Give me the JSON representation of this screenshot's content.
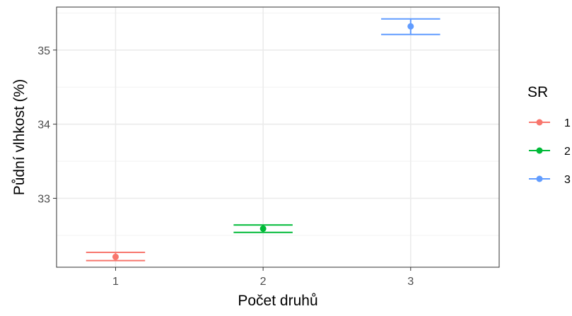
{
  "chart_data": {
    "type": "scatter",
    "title": "",
    "xlabel": "Počet druhů",
    "ylabel": "Půdní vlhkost (%)",
    "x_ticks": [
      "1",
      "2",
      "3"
    ],
    "y_ticks": [
      33,
      34,
      35
    ],
    "xlim": [
      0.6,
      3.6
    ],
    "ylim": [
      32.07,
      35.58
    ],
    "grid": true,
    "legend": {
      "title": "SR",
      "placement": "right",
      "entries": [
        "1",
        "2",
        "3"
      ]
    },
    "series": [
      {
        "name": "1",
        "color": "#F8766D",
        "x": 1,
        "y": 32.21,
        "ymin": 32.16,
        "ymax": 32.27
      },
      {
        "name": "2",
        "color": "#00BA38",
        "x": 2,
        "y": 32.59,
        "ymin": 32.54,
        "ymax": 32.64
      },
      {
        "name": "3",
        "color": "#619CFF",
        "x": 3,
        "y": 35.32,
        "ymin": 35.21,
        "ymax": 35.42
      }
    ]
  }
}
